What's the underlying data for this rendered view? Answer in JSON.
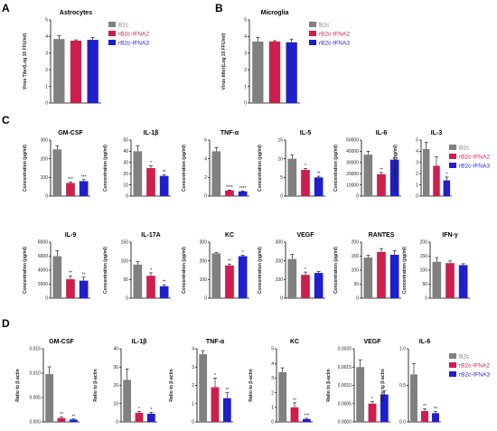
{
  "colors": {
    "B2c": "#808080",
    "rB2c-IFNA2": "#cc1f4e",
    "rB2c-IFNA3": "#1f1fcc"
  },
  "series_names": [
    "B2c",
    "rB2c-IFNA2",
    "rB2c-IFNA3"
  ],
  "panel_letters": [
    "A",
    "B",
    "C",
    "D"
  ],
  "chart_data": [
    {
      "id": "A",
      "type": "bar",
      "title": "Astrocytes",
      "ylabel": "Virus Titer(Log 10 FFU/ml)",
      "ylim": [
        0,
        5
      ],
      "ticks": [
        "0",
        "1",
        "2",
        "3",
        "4",
        "5"
      ],
      "tickvals": [
        0,
        1,
        2,
        3,
        4,
        5
      ],
      "series": [
        {
          "name": "B2c",
          "values": [
            3.85
          ],
          "err": [
            0.2
          ]
        },
        {
          "name": "rB2c-IFNA2",
          "values": [
            3.75
          ],
          "err": [
            0.05
          ]
        },
        {
          "name": "rB2c-IFNA3",
          "values": [
            3.8
          ],
          "err": [
            0.15
          ]
        }
      ],
      "sig": [
        "",
        "",
        ""
      ],
      "legend": "right"
    },
    {
      "id": "B",
      "type": "bar",
      "title": "Microglia",
      "ylabel": "Virus titter(Log 10 FFU/ml)",
      "ylim": [
        0,
        5
      ],
      "ticks": [
        "0",
        "1",
        "2",
        "3",
        "4",
        "5"
      ],
      "tickvals": [
        0,
        1,
        2,
        3,
        4,
        5
      ],
      "series": [
        {
          "name": "B2c",
          "values": [
            3.7
          ],
          "err": [
            0.25
          ]
        },
        {
          "name": "rB2c-IFNA2",
          "values": [
            3.7
          ],
          "err": [
            0.05
          ]
        },
        {
          "name": "rB2c-IFNA3",
          "values": [
            3.65
          ],
          "err": [
            0.2
          ]
        }
      ],
      "sig": [
        "",
        "",
        ""
      ],
      "legend": "right"
    },
    {
      "id": "C1",
      "type": "bar",
      "title": "GM-CSF",
      "ylabel": "Concentration (pg/ml)",
      "ylim": [
        0,
        300
      ],
      "ticks": [
        "0",
        "100",
        "200",
        "300"
      ],
      "tickvals": [
        0,
        100,
        200,
        300
      ],
      "series": [
        {
          "name": "B2c",
          "values": [
            250
          ],
          "err": [
            20
          ]
        },
        {
          "name": "rB2c-IFNA2",
          "values": [
            70
          ],
          "err": [
            5
          ]
        },
        {
          "name": "rB2c-IFNA3",
          "values": [
            80
          ],
          "err": [
            8
          ]
        }
      ],
      "sig": [
        "",
        "***",
        "***"
      ]
    },
    {
      "id": "C2",
      "type": "bar",
      "title": "IL-1β",
      "ylabel": "Concentration (pg/ml)",
      "ylim": [
        0,
        50
      ],
      "ticks": [
        "0",
        "10",
        "20",
        "30",
        "40",
        "50"
      ],
      "tickvals": [
        0,
        10,
        20,
        30,
        40,
        50
      ],
      "series": [
        {
          "name": "B2c",
          "values": [
            40
          ],
          "err": [
            5
          ]
        },
        {
          "name": "rB2c-IFNA2",
          "values": [
            25
          ],
          "err": [
            2
          ]
        },
        {
          "name": "rB2c-IFNA3",
          "values": [
            18
          ],
          "err": [
            1
          ]
        }
      ],
      "sig": [
        "",
        "*",
        "**"
      ]
    },
    {
      "id": "C3",
      "type": "bar",
      "title": "TNF-α",
      "ylabel": "Concentration (pg/ml)",
      "ylim": [
        0,
        6
      ],
      "ticks": [
        "0",
        "2",
        "4",
        "6"
      ],
      "tickvals": [
        0,
        2,
        4,
        6
      ],
      "series": [
        {
          "name": "B2c",
          "values": [
            4.8
          ],
          "err": [
            0.4
          ]
        },
        {
          "name": "rB2c-IFNA2",
          "values": [
            0.6
          ],
          "err": [
            0.05
          ]
        },
        {
          "name": "rB2c-IFNA3",
          "values": [
            0.5
          ],
          "err": [
            0.05
          ]
        }
      ],
      "sig": [
        "",
        "****",
        "****"
      ]
    },
    {
      "id": "C4",
      "type": "bar",
      "title": "IL-5",
      "ylabel": "Concentration (pg/ml)",
      "ylim": [
        0,
        15
      ],
      "ticks": [
        "0",
        "5",
        "10",
        "15"
      ],
      "tickvals": [
        0,
        5,
        10,
        15
      ],
      "series": [
        {
          "name": "B2c",
          "values": [
            10
          ],
          "err": [
            1
          ]
        },
        {
          "name": "rB2c-IFNA2",
          "values": [
            7
          ],
          "err": [
            0.4
          ]
        },
        {
          "name": "rB2c-IFNA3",
          "values": [
            5
          ],
          "err": [
            0.3
          ]
        }
      ],
      "sig": [
        "",
        "*",
        "**"
      ]
    },
    {
      "id": "C5",
      "type": "bar",
      "title": "IL-6",
      "ylabel": "Concentration (pg/ml)",
      "ylim": [
        0,
        50000
      ],
      "ticks": [
        "0",
        "10000",
        "20000",
        "30000",
        "40000",
        "50000"
      ],
      "tickvals": [
        0,
        10000,
        20000,
        30000,
        40000,
        50000
      ],
      "series": [
        {
          "name": "B2c",
          "values": [
            37000
          ],
          "err": [
            3000
          ]
        },
        {
          "name": "rB2c-IFNA2",
          "values": [
            19500
          ],
          "err": [
            1500
          ]
        },
        {
          "name": "rB2c-IFNA3",
          "values": [
            32500
          ],
          "err": [
            2000
          ]
        }
      ],
      "sig": [
        "",
        "**",
        ""
      ]
    },
    {
      "id": "C6",
      "type": "bar",
      "title": "IL-3",
      "ylabel": "Concentration (pg/ml)",
      "ylim": [
        0,
        5
      ],
      "ticks": [
        "0",
        "1",
        "2",
        "3",
        "4",
        "5"
      ],
      "tickvals": [
        0,
        1,
        2,
        3,
        4,
        5
      ],
      "series": [
        {
          "name": "B2c",
          "values": [
            4.2
          ],
          "err": [
            0.6
          ]
        },
        {
          "name": "rB2c-IFNA2",
          "values": [
            2.7
          ],
          "err": [
            0.8
          ]
        },
        {
          "name": "rB2c-IFNA3",
          "values": [
            1.4
          ],
          "err": [
            0.3
          ]
        }
      ],
      "sig": [
        "",
        "",
        "*"
      ],
      "legend": "right"
    },
    {
      "id": "C7",
      "type": "bar",
      "title": "IL-9",
      "ylabel": "Concentration (pg/ml)",
      "ylim": [
        0,
        8000
      ],
      "ticks": [
        "0",
        "2000",
        "4000",
        "6000",
        "8000"
      ],
      "tickvals": [
        0,
        2000,
        4000,
        6000,
        8000
      ],
      "series": [
        {
          "name": "B2c",
          "values": [
            6000
          ],
          "err": [
            800
          ]
        },
        {
          "name": "rB2c-IFNA2",
          "values": [
            2700
          ],
          "err": [
            500
          ]
        },
        {
          "name": "rB2c-IFNA3",
          "values": [
            2500
          ],
          "err": [
            500
          ]
        }
      ],
      "sig": [
        "",
        "**",
        "**"
      ]
    },
    {
      "id": "C8",
      "type": "bar",
      "title": "IL-17A",
      "ylabel": "Concentration (pg/ml)",
      "ylim": [
        0,
        150
      ],
      "ticks": [
        "0",
        "50",
        "100",
        "150"
      ],
      "tickvals": [
        0,
        50,
        100,
        150
      ],
      "series": [
        {
          "name": "B2c",
          "values": [
            90
          ],
          "err": [
            8
          ]
        },
        {
          "name": "rB2c-IFNA2",
          "values": [
            60
          ],
          "err": [
            8
          ]
        },
        {
          "name": "rB2c-IFNA3",
          "values": [
            32
          ],
          "err": [
            4
          ]
        }
      ],
      "sig": [
        "",
        "*",
        "**"
      ]
    },
    {
      "id": "C9",
      "type": "bar",
      "title": "KC",
      "ylabel": "Concentration (pg/ml)",
      "ylim": [
        0,
        300
      ],
      "ticks": [
        "0",
        "100",
        "200",
        "300"
      ],
      "tickvals": [
        0,
        100,
        200,
        300
      ],
      "series": [
        {
          "name": "B2c",
          "values": [
            240
          ],
          "err": [
            4
          ]
        },
        {
          "name": "rB2c-IFNA2",
          "values": [
            175
          ],
          "err": [
            8
          ]
        },
        {
          "name": "rB2c-IFNA3",
          "values": [
            225
          ],
          "err": [
            5
          ]
        }
      ],
      "sig": [
        "",
        "**",
        "*"
      ]
    },
    {
      "id": "C10",
      "type": "bar",
      "title": "VEGF",
      "ylabel": "Concentration (pg/ml)",
      "ylim": [
        0,
        300
      ],
      "ticks": [
        "0",
        "100",
        "200",
        "300"
      ],
      "tickvals": [
        0,
        100,
        200,
        300
      ],
      "series": [
        {
          "name": "B2c",
          "values": [
            210
          ],
          "err": [
            25
          ]
        },
        {
          "name": "rB2c-IFNA2",
          "values": [
            125
          ],
          "err": [
            15
          ]
        },
        {
          "name": "rB2c-IFNA3",
          "values": [
            135
          ],
          "err": [
            8
          ]
        }
      ],
      "sig": [
        "",
        "*",
        ""
      ]
    },
    {
      "id": "C11",
      "type": "bar",
      "title": "RANTES",
      "ylabel": "Concentration (pg/ml)",
      "ylim": [
        0,
        200
      ],
      "ticks": [
        "0",
        "50",
        "100",
        "150",
        "200"
      ],
      "tickvals": [
        0,
        50,
        100,
        150,
        200
      ],
      "series": [
        {
          "name": "B2c",
          "values": [
            145
          ],
          "err": [
            8
          ]
        },
        {
          "name": "rB2c-IFNA2",
          "values": [
            165
          ],
          "err": [
            12
          ]
        },
        {
          "name": "rB2c-IFNA3",
          "values": [
            155
          ],
          "err": [
            15
          ]
        }
      ],
      "sig": [
        "",
        "",
        ""
      ]
    },
    {
      "id": "C12",
      "type": "bar",
      "title": "IFN-γ",
      "ylabel": "Concentration (pg/ml)",
      "ylim": [
        0,
        200
      ],
      "ticks": [
        "0",
        "50",
        "100",
        "150",
        "200"
      ],
      "tickvals": [
        0,
        50,
        100,
        150,
        200
      ],
      "series": [
        {
          "name": "B2c",
          "values": [
            130
          ],
          "err": [
            15
          ]
        },
        {
          "name": "rB2c-IFNA2",
          "values": [
            125
          ],
          "err": [
            8
          ]
        },
        {
          "name": "rB2c-IFNA3",
          "values": [
            118
          ],
          "err": [
            5
          ]
        }
      ],
      "sig": [
        "",
        "",
        ""
      ]
    },
    {
      "id": "D1",
      "type": "bar",
      "title": "GM-CSF",
      "ylabel": "Ratio to β-actin",
      "ylim": [
        0,
        0.015
      ],
      "ticks": [
        "0.000",
        "0.005",
        "0.010",
        "0.015"
      ],
      "tickvals": [
        0,
        0.005,
        0.01,
        0.015
      ],
      "series": [
        {
          "name": "B2c",
          "values": [
            0.0098
          ],
          "err": [
            0.0015
          ]
        },
        {
          "name": "rB2c-IFNA2",
          "values": [
            0.0008
          ],
          "err": [
            0.0002
          ]
        },
        {
          "name": "rB2c-IFNA3",
          "values": [
            0.0005
          ],
          "err": [
            0.0001
          ]
        }
      ],
      "sig": [
        "",
        "**",
        "**"
      ]
    },
    {
      "id": "D2",
      "type": "bar",
      "title": "IL-1β",
      "ylabel": "Ratio to β-actin",
      "ylim": [
        0,
        40
      ],
      "ticks": [
        "0",
        "10",
        "20",
        "30",
        "40"
      ],
      "tickvals": [
        0,
        10,
        20,
        30,
        40
      ],
      "series": [
        {
          "name": "B2c",
          "values": [
            23
          ],
          "err": [
            6
          ]
        },
        {
          "name": "rB2c-IFNA2",
          "values": [
            5
          ],
          "err": [
            0.8
          ]
        },
        {
          "name": "rB2c-IFNA3",
          "values": [
            4.5
          ],
          "err": [
            0.8
          ]
        }
      ],
      "sig": [
        "",
        "*",
        "*"
      ]
    },
    {
      "id": "D3",
      "type": "bar",
      "title": "TNF-α",
      "ylabel": "Ratio to β-actin",
      "ylim": [
        0,
        4
      ],
      "ticks": [
        "0",
        "1",
        "2",
        "3",
        "4"
      ],
      "tickvals": [
        0,
        1,
        2,
        3,
        4
      ],
      "series": [
        {
          "name": "B2c",
          "values": [
            3.7
          ],
          "err": [
            0.2
          ]
        },
        {
          "name": "rB2c-IFNA2",
          "values": [
            1.9
          ],
          "err": [
            0.5
          ]
        },
        {
          "name": "rB2c-IFNA3",
          "values": [
            1.3
          ],
          "err": [
            0.3
          ]
        }
      ],
      "sig": [
        "",
        "*",
        "**"
      ]
    },
    {
      "id": "D4",
      "type": "bar",
      "title": "KC",
      "ylabel": "Ratio to β-actin",
      "ylim": [
        0,
        5
      ],
      "ticks": [
        "0",
        "1",
        "2",
        "3",
        "4",
        "5"
      ],
      "tickvals": [
        0,
        1,
        2,
        3,
        4,
        5
      ],
      "series": [
        {
          "name": "B2c",
          "values": [
            3.4
          ],
          "err": [
            0.3
          ]
        },
        {
          "name": "rB2c-IFNA2",
          "values": [
            1.0
          ],
          "err": [
            0.3
          ]
        },
        {
          "name": "rB2c-IFNA3",
          "values": [
            0.2
          ],
          "err": [
            0.05
          ]
        }
      ],
      "sig": [
        "",
        "**",
        "***"
      ]
    },
    {
      "id": "D5",
      "type": "bar",
      "title": "VEGF",
      "ylabel": "Ratio to β-actin",
      "ylim": [
        0,
        0.002
      ],
      "ticks": [
        "0.0000",
        "0.0005",
        "0.0010",
        "0.0015",
        "0.0020"
      ],
      "tickvals": [
        0,
        0.0005,
        0.001,
        0.0015,
        0.002
      ],
      "series": [
        {
          "name": "B2c",
          "values": [
            0.0015
          ],
          "err": [
            0.0002
          ]
        },
        {
          "name": "rB2c-IFNA2",
          "values": [
            0.0005
          ],
          "err": [
            5e-05
          ]
        },
        {
          "name": "rB2c-IFNA3",
          "values": [
            0.00075
          ],
          "err": [
            0.0001
          ]
        }
      ],
      "sig": [
        "",
        "*",
        "*"
      ]
    },
    {
      "id": "D6",
      "type": "bar",
      "title": "IL-6",
      "ylabel": "Ratio to β-actin",
      "ylim": [
        0,
        1
      ],
      "ticks": [
        "0.0",
        "0.5",
        "1.0"
      ],
      "tickvals": [
        0,
        0.5,
        1
      ],
      "series": [
        {
          "name": "B2c",
          "values": [
            0.65
          ],
          "err": [
            0.15
          ]
        },
        {
          "name": "rB2c-IFNA2",
          "values": [
            0.15
          ],
          "err": [
            0.03
          ]
        },
        {
          "name": "rB2c-IFNA3",
          "values": [
            0.12
          ],
          "err": [
            0.02
          ]
        }
      ],
      "sig": [
        "",
        "**",
        "**"
      ],
      "legend": "right"
    }
  ]
}
